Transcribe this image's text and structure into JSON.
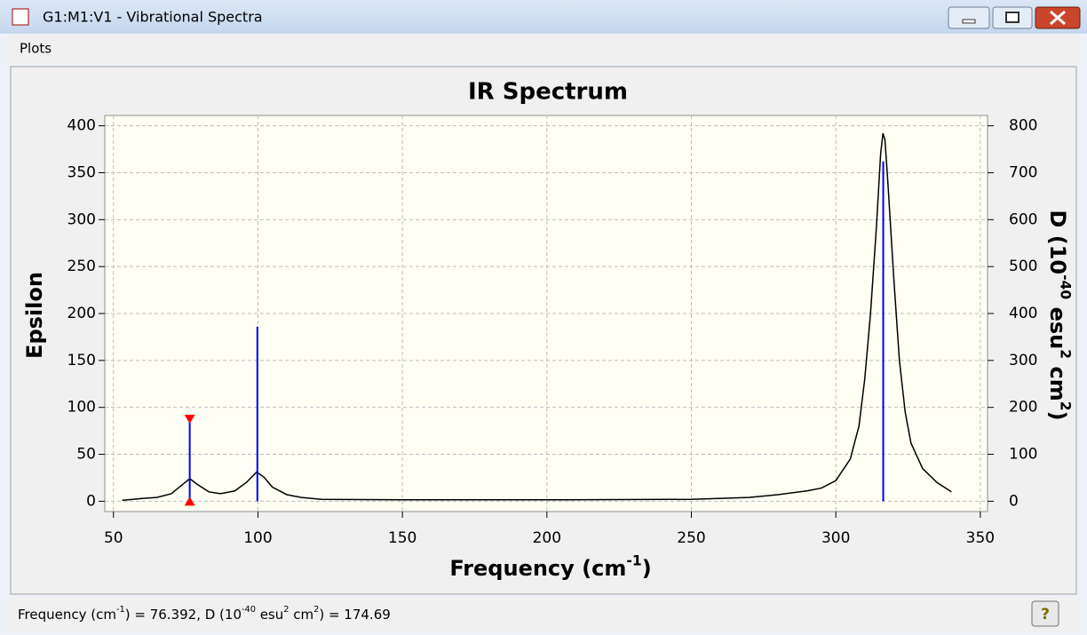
{
  "window": {
    "title": "G1:M1:V1 - Vibrational Spectra",
    "menu": [
      "Plots"
    ]
  },
  "status": {
    "frequency_label": [
      "Frequency (cm",
      "-1",
      ") = "
    ],
    "intensity_label": [
      ", D (10",
      "-40",
      " esu",
      "2",
      " cm",
      "2",
      ") = "
    ],
    "help": "?"
  },
  "chart_data": {
    "type": "spectrum",
    "title": "IR Spectrum",
    "x_label": [
      "Frequency (cm",
      "-1",
      ")"
    ],
    "y_label": "Epsilon",
    "y2_label": [
      "D (10",
      "-40",
      " esu",
      "2",
      " cm",
      "2",
      ")"
    ],
    "xlim": [
      47,
      352.5
    ],
    "xticks": [
      50,
      100,
      150,
      200,
      250,
      300,
      350
    ],
    "ylim": [
      -11,
      411
    ],
    "yticks": [
      0,
      50,
      100,
      150,
      200,
      250,
      300,
      350,
      400
    ],
    "y2lim": [
      -22,
      822
    ],
    "y2ticks": [
      0,
      100,
      200,
      300,
      400,
      500,
      600,
      700,
      800
    ],
    "grid": true,
    "curve": {
      "color": "#000000",
      "x": [
        53,
        60,
        65,
        70,
        74,
        76.4,
        79,
        83,
        87,
        92,
        96,
        99.5,
        102,
        105,
        110,
        115,
        122,
        150,
        200,
        250,
        270,
        280,
        290,
        295,
        300,
        305,
        308,
        310,
        312,
        314,
        315.5,
        316.3,
        317,
        318,
        320,
        322,
        324,
        326,
        330,
        335,
        340
      ],
      "values": [
        1,
        3,
        4,
        8,
        18,
        24,
        18,
        10,
        8,
        11,
        20,
        31,
        26,
        15,
        7,
        4,
        2,
        1.5,
        1.5,
        2,
        4,
        7,
        11,
        14,
        22,
        45,
        80,
        130,
        200,
        290,
        370,
        392,
        385,
        340,
        240,
        150,
        95,
        62,
        35,
        20,
        10
      ]
    },
    "sticks": {
      "axis": "y2",
      "color": "#0000ff",
      "x": [
        76.392,
        99.8,
        316.4
      ],
      "values": [
        174.69,
        372,
        724
      ]
    },
    "selected_index": 0,
    "marker_color": "#ff0000"
  }
}
